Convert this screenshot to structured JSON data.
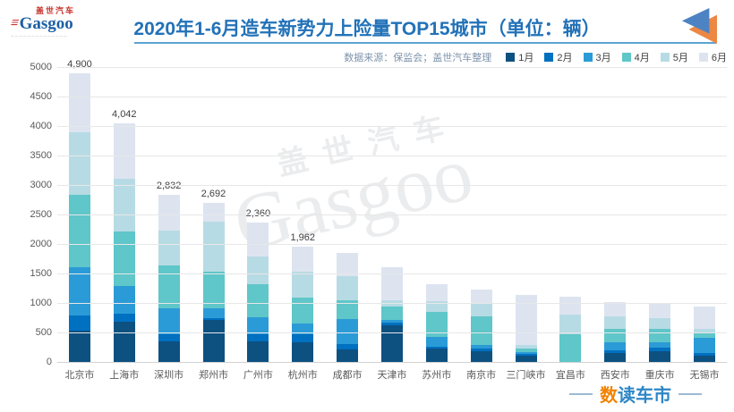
{
  "header": {
    "logo": {
      "cn": "盖世汽车",
      "en": "Gasgoo",
      "stripes": "≡",
      "tagline": "──────────────"
    },
    "title": "2020年1-6月造车新势力上险量TOP15城市（单位：辆）",
    "title_color": "#2272b8",
    "rule_color": "#5ba3d0",
    "arrow_icon": {
      "orange": "#ec8744",
      "blue": "#4d83c3"
    }
  },
  "source_note": "数据来源：保监会；盖世汽车整理",
  "watermark": {
    "line1": "盖世汽车",
    "line2": "Gasgoo"
  },
  "footer": {
    "text_orange": "数",
    "text_blue": "读车市"
  },
  "chart_data": {
    "type": "bar",
    "stacked": true,
    "title": "2020年1-6月造车新势力上险量TOP15城市（单位：辆）",
    "ylim": [
      0,
      5000
    ],
    "ytick_step": 500,
    "ytick_labels": [
      "0",
      "500",
      "1000",
      "1500",
      "2000",
      "2500",
      "3000",
      "3500",
      "4000",
      "4500",
      "5000"
    ],
    "grid": true,
    "legend_position": "top-right",
    "categories": [
      "北京市",
      "上海市",
      "深圳市",
      "郑州市",
      "广州市",
      "杭州市",
      "成都市",
      "天津市",
      "苏州市",
      "南京市",
      "三门峡市",
      "宜昌市",
      "西安市",
      "重庆市",
      "无锡市"
    ],
    "totals": [
      4900,
      4042,
      2832,
      2692,
      2360,
      1962,
      1850,
      1600,
      1320,
      1230,
      1140,
      1100,
      1020,
      990,
      940
    ],
    "bar_labels": [
      "4,900",
      "4,042",
      "2,832",
      "2,692",
      "2,360",
      "1,962",
      "",
      "",
      "",
      "",
      "",
      "",
      "",
      "",
      ""
    ],
    "series": [
      {
        "name": "1月",
        "color": "#0d5181",
        "values": [
          530,
          682,
          344,
          707,
          344,
          329,
          212,
          616,
          227,
          177,
          100,
          0,
          152,
          186,
          111
        ]
      },
      {
        "name": "2月",
        "color": "#0070c0",
        "values": [
          253,
          136,
          121,
          40,
          126,
          141,
          91,
          45,
          30,
          50,
          30,
          0,
          50,
          60,
          40
        ]
      },
      {
        "name": "3月",
        "color": "#2b9bd7",
        "values": [
          818,
          470,
          444,
          162,
          288,
          186,
          419,
          46,
          163,
          61,
          30,
          0,
          127,
          83,
          263
        ]
      },
      {
        "name": "4月",
        "color": "#5fc6c9",
        "values": [
          1227,
          924,
          732,
          621,
          565,
          430,
          323,
          227,
          424,
          480,
          65,
          465,
          236,
          227,
          91
        ]
      },
      {
        "name": "5月",
        "color": "#b7dbe4",
        "values": [
          1061,
          894,
          586,
          844,
          469,
          439,
          405,
          111,
          181,
          227,
          60,
          343,
          202,
          186,
          60
        ]
      },
      {
        "name": "6月",
        "color": "#dde4f0",
        "values": [
          1011,
          936,
          605,
          318,
          568,
          437,
          400,
          555,
          295,
          235,
          855,
          292,
          253,
          248,
          375
        ]
      }
    ]
  }
}
